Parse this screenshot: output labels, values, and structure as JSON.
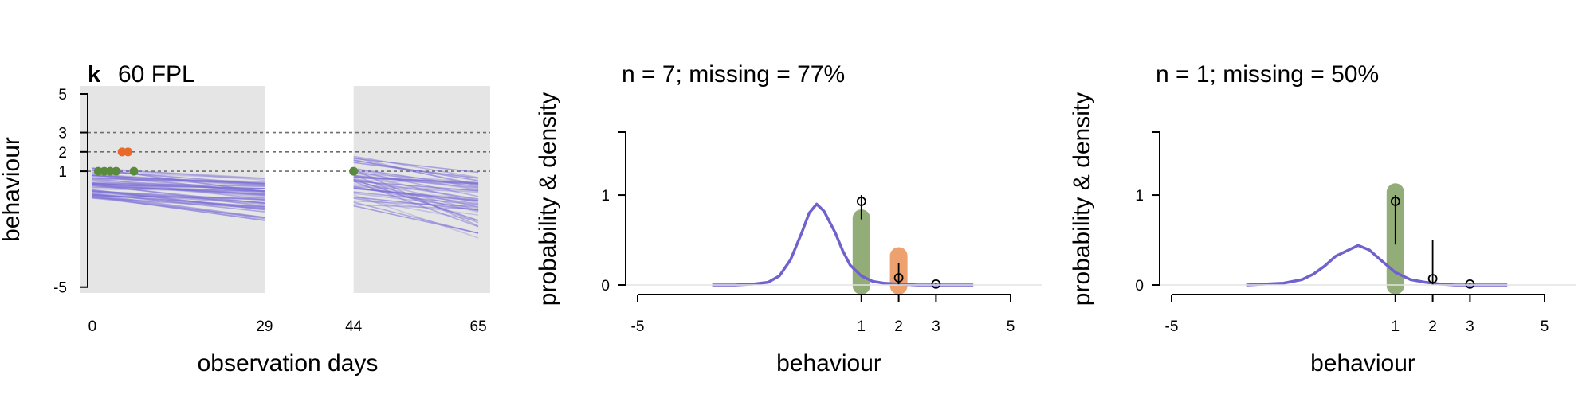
{
  "colors": {
    "panel_bg": "#e5e5e5",
    "line": "#7b6fd6",
    "green": "#5a8a3c",
    "orange": "#e8692a",
    "density": "#6f62cf",
    "bar_green": "#93ad78",
    "bar_orange": "#eda16f",
    "axis": "#000000",
    "grid": "#6e6e6e"
  },
  "chart_data": [
    {
      "type": "line",
      "panel_letter": "k",
      "title": "60 FPL",
      "xlabel": "observation days",
      "ylabel": "behaviour",
      "x_ticks": [
        0,
        29,
        44,
        65
      ],
      "y_ticks": [
        -5,
        1,
        2,
        3,
        5
      ],
      "xlim": [
        -2,
        67
      ],
      "ylim": [
        -5.3,
        5
      ],
      "shaded_windows": [
        [
          -2,
          29
        ],
        [
          44,
          67
        ]
      ],
      "reference_lines": [
        1,
        2,
        3
      ],
      "observed_points": [
        {
          "x": 1,
          "y": 1,
          "category": 1
        },
        {
          "x": 2,
          "y": 1,
          "category": 1
        },
        {
          "x": 3,
          "y": 1,
          "category": 1
        },
        {
          "x": 4,
          "y": 1,
          "category": 1
        },
        {
          "x": 5,
          "y": 2,
          "category": 2
        },
        {
          "x": 6,
          "y": 2,
          "category": 2
        },
        {
          "x": 7,
          "y": 1,
          "category": 1
        },
        {
          "x": 44,
          "y": 1,
          "category": 1
        }
      ]
    },
    {
      "type": "area",
      "title": "n = 7; missing = 77%",
      "xlabel": "behaviour",
      "ylabel": "probability & density",
      "x_ticks": [
        -5,
        1,
        2,
        3,
        5
      ],
      "y_ticks": [
        0,
        1
      ],
      "xlim": [
        -5,
        5
      ],
      "ylim": [
        0,
        1.7
      ],
      "density": {
        "x": [
          -3,
          -2.4,
          -1.9,
          -1.5,
          -1.2,
          -0.9,
          -0.6,
          -0.4,
          -0.2,
          0,
          0.3,
          0.5,
          0.7,
          1.0,
          1.3,
          1.6,
          2.0,
          2.5,
          3.0,
          3.5,
          4.0
        ],
        "y": [
          0,
          0,
          0.01,
          0.03,
          0.1,
          0.28,
          0.58,
          0.8,
          0.9,
          0.82,
          0.58,
          0.38,
          0.22,
          0.1,
          0.04,
          0.02,
          0.01,
          0,
          0,
          0,
          0
        ]
      },
      "bars": [
        {
          "x": 1,
          "value": 0.77,
          "category": 1
        },
        {
          "x": 2,
          "value": 0.35,
          "category": 2
        }
      ],
      "estimates": [
        {
          "x": 1,
          "y": 0.93,
          "lower": 0.73,
          "upper": 1.0
        },
        {
          "x": 2,
          "y": 0.08,
          "lower": 0.0,
          "upper": 0.24
        },
        {
          "x": 3,
          "y": 0.01,
          "lower": 0.0,
          "upper": 0.02
        }
      ]
    },
    {
      "type": "area",
      "title": "n = 1; missing = 50%",
      "xlabel": "behaviour",
      "ylabel": "probability & density",
      "x_ticks": [
        -5,
        1,
        2,
        3,
        5
      ],
      "y_ticks": [
        0,
        1
      ],
      "xlim": [
        -5,
        5
      ],
      "ylim": [
        0,
        1.7
      ],
      "density": {
        "x": [
          -3,
          -2.5,
          -2,
          -1.5,
          -1.2,
          -0.9,
          -0.6,
          -0.3,
          0,
          0.3,
          0.6,
          1.0,
          1.4,
          1.8,
          2.2,
          2.6,
          3.0,
          3.5,
          4.0
        ],
        "y": [
          0,
          0.01,
          0.02,
          0.06,
          0.12,
          0.21,
          0.32,
          0.38,
          0.44,
          0.39,
          0.28,
          0.14,
          0.06,
          0.03,
          0.01,
          0,
          0,
          0,
          0
        ]
      },
      "bars": [
        {
          "x": 1,
          "value": 1.06,
          "category": 1
        }
      ],
      "estimates": [
        {
          "x": 1,
          "y": 0.93,
          "lower": 0.45,
          "upper": 1.0
        },
        {
          "x": 2,
          "y": 0.07,
          "lower": 0.0,
          "upper": 0.5
        },
        {
          "x": 3,
          "y": 0.01,
          "lower": 0.0,
          "upper": 0.02
        }
      ]
    }
  ]
}
